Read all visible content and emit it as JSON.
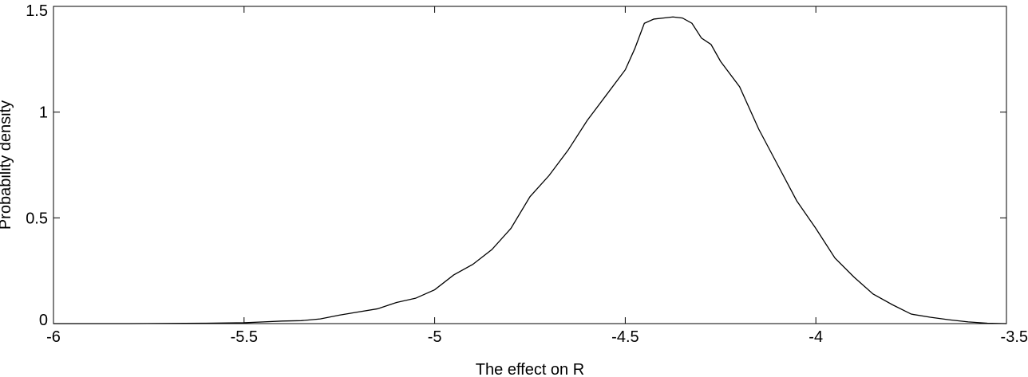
{
  "chart_data": {
    "type": "line",
    "title": "",
    "xlabel": "The effect on R",
    "ylabel": "Probability density",
    "xlim": [
      -6,
      -3.5
    ],
    "ylim": [
      0,
      1.5
    ],
    "x_ticks": [
      -6,
      -5.5,
      -5,
      -4.5,
      -4,
      -3.5
    ],
    "x_tick_labels": [
      "-6",
      "-5.5",
      "-5",
      "-4.5",
      "-4",
      "-3.5"
    ],
    "y_ticks": [
      0,
      0.5,
      1,
      1.5
    ],
    "y_tick_labels": [
      "0",
      "0.5",
      "1",
      "1.5"
    ],
    "grid": false,
    "line_color": "#000000",
    "series": [
      {
        "x": [
          -6.0,
          -5.8,
          -5.6,
          -5.5,
          -5.45,
          -5.4,
          -5.35,
          -5.3,
          -5.25,
          -5.2,
          -5.15,
          -5.1,
          -5.05,
          -5.0,
          -4.95,
          -4.9,
          -4.85,
          -4.8,
          -4.75,
          -4.7,
          -4.65,
          -4.6,
          -4.55,
          -4.5,
          -4.475,
          -4.45,
          -4.425,
          -4.4,
          -4.375,
          -4.35,
          -4.325,
          -4.3,
          -4.275,
          -4.25,
          -4.2,
          -4.15,
          -4.1,
          -4.05,
          -4.0,
          -3.95,
          -3.9,
          -3.85,
          -3.8,
          -3.75,
          -3.7,
          -3.65,
          -3.6,
          -3.55,
          -3.5
        ],
        "y": [
          0.0,
          0.0,
          0.002,
          0.004,
          0.008,
          0.012,
          0.014,
          0.022,
          0.04,
          0.055,
          0.07,
          0.1,
          0.12,
          0.16,
          0.23,
          0.28,
          0.35,
          0.45,
          0.6,
          0.7,
          0.82,
          0.96,
          1.08,
          1.2,
          1.3,
          1.42,
          1.44,
          1.445,
          1.45,
          1.445,
          1.42,
          1.35,
          1.32,
          1.24,
          1.12,
          0.92,
          0.75,
          0.58,
          0.45,
          0.31,
          0.22,
          0.14,
          0.09,
          0.045,
          0.03,
          0.018,
          0.008,
          0.002,
          0.0
        ]
      }
    ]
  }
}
